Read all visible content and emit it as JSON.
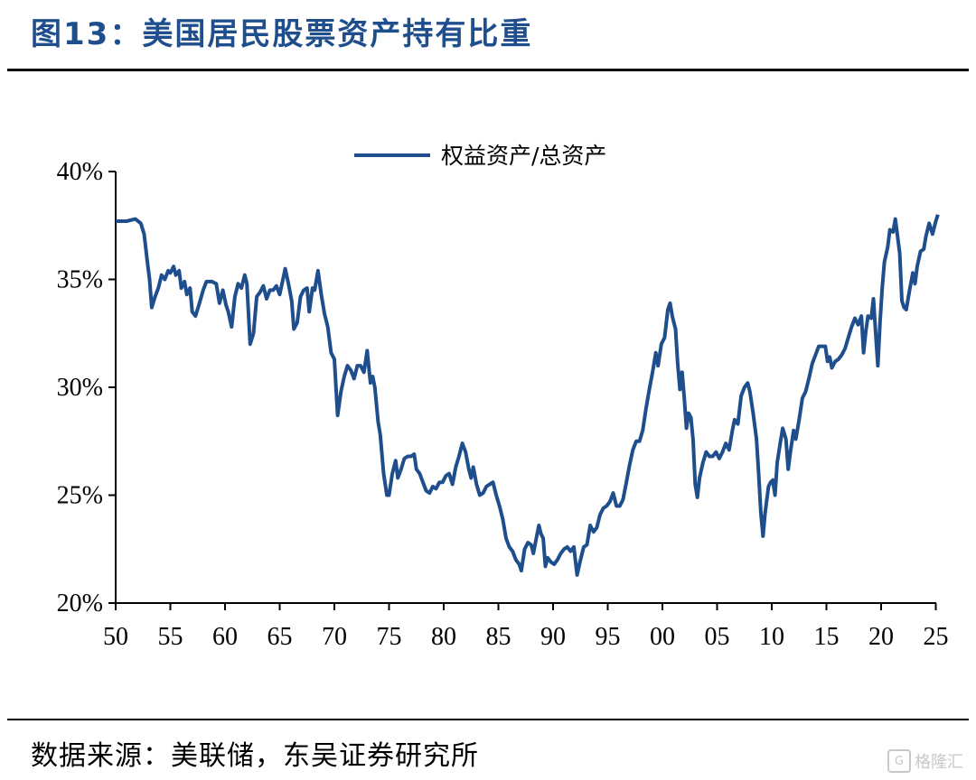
{
  "title": "图13：美国居民股票资产持有比重",
  "source": "数据来源：美联储，东吴证券研究所",
  "watermark": "格隆汇",
  "colors": {
    "title": "#1f4e8c",
    "line": "#1f4e8c",
    "axis": "#000000"
  },
  "chart_data": {
    "type": "line",
    "title": "",
    "xlabel": "",
    "ylabel": "",
    "x_ticks": [
      "50",
      "55",
      "60",
      "65",
      "70",
      "75",
      "80",
      "85",
      "90",
      "95",
      "00",
      "05",
      "10",
      "15",
      "20",
      "25"
    ],
    "y_ticks": [
      "20%",
      "25%",
      "30%",
      "35%",
      "40%"
    ],
    "ylim": [
      20,
      40
    ],
    "xlim": [
      1950,
      2025.3
    ],
    "grid": false,
    "legend": "top-center",
    "series": [
      {
        "name": "权益资产/总资产",
        "points": [
          [
            1950.0,
            37.7
          ],
          [
            1951.0,
            37.7
          ],
          [
            1951.8,
            37.8
          ],
          [
            1952.3,
            37.6
          ],
          [
            1952.6,
            37.1
          ],
          [
            1952.9,
            35.8
          ],
          [
            1953.1,
            35.0
          ],
          [
            1953.3,
            33.7
          ],
          [
            1953.6,
            34.2
          ],
          [
            1953.9,
            34.6
          ],
          [
            1954.2,
            35.2
          ],
          [
            1954.5,
            35.0
          ],
          [
            1954.8,
            35.4
          ],
          [
            1955.0,
            35.3
          ],
          [
            1955.3,
            35.6
          ],
          [
            1955.5,
            35.2
          ],
          [
            1955.8,
            35.4
          ],
          [
            1956.0,
            34.6
          ],
          [
            1956.3,
            34.9
          ],
          [
            1956.5,
            34.3
          ],
          [
            1956.8,
            34.6
          ],
          [
            1957.0,
            33.5
          ],
          [
            1957.3,
            33.3
          ],
          [
            1957.6,
            33.8
          ],
          [
            1958.0,
            34.5
          ],
          [
            1958.3,
            34.9
          ],
          [
            1958.8,
            34.9
          ],
          [
            1959.2,
            34.8
          ],
          [
            1959.5,
            33.9
          ],
          [
            1959.8,
            34.5
          ],
          [
            1960.1,
            33.8
          ],
          [
            1960.3,
            33.5
          ],
          [
            1960.6,
            32.8
          ],
          [
            1960.9,
            34.2
          ],
          [
            1961.2,
            34.8
          ],
          [
            1961.5,
            34.6
          ],
          [
            1961.8,
            35.2
          ],
          [
            1962.0,
            34.8
          ],
          [
            1962.3,
            32.0
          ],
          [
            1962.6,
            32.5
          ],
          [
            1962.9,
            34.2
          ],
          [
            1963.2,
            34.4
          ],
          [
            1963.5,
            34.7
          ],
          [
            1963.8,
            34.1
          ],
          [
            1964.1,
            34.5
          ],
          [
            1964.4,
            34.5
          ],
          [
            1964.7,
            34.7
          ],
          [
            1965.0,
            34.3
          ],
          [
            1965.3,
            35.0
          ],
          [
            1965.5,
            35.5
          ],
          [
            1965.8,
            34.8
          ],
          [
            1966.1,
            34.0
          ],
          [
            1966.3,
            32.7
          ],
          [
            1966.6,
            33.0
          ],
          [
            1966.9,
            34.2
          ],
          [
            1967.2,
            34.5
          ],
          [
            1967.5,
            34.6
          ],
          [
            1967.7,
            33.5
          ],
          [
            1968.0,
            34.6
          ],
          [
            1968.2,
            34.5
          ],
          [
            1968.5,
            35.4
          ],
          [
            1968.8,
            34.3
          ],
          [
            1969.1,
            33.4
          ],
          [
            1969.4,
            32.8
          ],
          [
            1969.7,
            31.6
          ],
          [
            1970.0,
            31.3
          ],
          [
            1970.3,
            28.7
          ],
          [
            1970.6,
            29.8
          ],
          [
            1970.9,
            30.5
          ],
          [
            1971.2,
            31.0
          ],
          [
            1971.5,
            30.8
          ],
          [
            1971.8,
            30.4
          ],
          [
            1972.1,
            31.0
          ],
          [
            1972.4,
            31.0
          ],
          [
            1972.7,
            30.7
          ],
          [
            1973.0,
            31.7
          ],
          [
            1973.3,
            30.2
          ],
          [
            1973.5,
            30.5
          ],
          [
            1973.7,
            30.0
          ],
          [
            1974.0,
            28.4
          ],
          [
            1974.2,
            27.8
          ],
          [
            1974.5,
            26.0
          ],
          [
            1974.8,
            25.0
          ],
          [
            1975.0,
            25.0
          ],
          [
            1975.3,
            26.0
          ],
          [
            1975.6,
            26.6
          ],
          [
            1975.8,
            25.8
          ],
          [
            1976.1,
            26.2
          ],
          [
            1976.4,
            26.7
          ],
          [
            1976.7,
            26.8
          ],
          [
            1977.0,
            26.8
          ],
          [
            1977.3,
            26.9
          ],
          [
            1977.5,
            26.2
          ],
          [
            1977.8,
            26.0
          ],
          [
            1978.1,
            25.6
          ],
          [
            1978.4,
            25.2
          ],
          [
            1978.7,
            25.1
          ],
          [
            1979.0,
            25.4
          ],
          [
            1979.3,
            25.3
          ],
          [
            1979.6,
            25.6
          ],
          [
            1979.9,
            25.6
          ],
          [
            1980.2,
            25.9
          ],
          [
            1980.5,
            26.0
          ],
          [
            1980.8,
            25.5
          ],
          [
            1981.1,
            26.3
          ],
          [
            1981.4,
            26.8
          ],
          [
            1981.7,
            27.4
          ],
          [
            1982.0,
            27.0
          ],
          [
            1982.3,
            26.2
          ],
          [
            1982.5,
            25.8
          ],
          [
            1982.7,
            26.3
          ],
          [
            1983.0,
            25.5
          ],
          [
            1983.3,
            25.0
          ],
          [
            1983.6,
            25.1
          ],
          [
            1983.9,
            25.4
          ],
          [
            1984.2,
            25.5
          ],
          [
            1984.5,
            25.6
          ],
          [
            1984.8,
            25.0
          ],
          [
            1985.1,
            24.5
          ],
          [
            1985.4,
            23.9
          ],
          [
            1985.7,
            23.0
          ],
          [
            1986.0,
            22.6
          ],
          [
            1986.3,
            22.4
          ],
          [
            1986.6,
            22.0
          ],
          [
            1986.9,
            21.8
          ],
          [
            1987.1,
            21.5
          ],
          [
            1987.4,
            22.5
          ],
          [
            1987.7,
            22.8
          ],
          [
            1988.0,
            22.7
          ],
          [
            1988.2,
            22.3
          ],
          [
            1988.5,
            23.1
          ],
          [
            1988.7,
            23.6
          ],
          [
            1988.9,
            23.2
          ],
          [
            1989.1,
            23.0
          ],
          [
            1989.3,
            21.7
          ],
          [
            1989.5,
            22.1
          ],
          [
            1989.8,
            21.9
          ],
          [
            1990.1,
            21.8
          ],
          [
            1990.4,
            22.0
          ],
          [
            1990.7,
            22.3
          ],
          [
            1991.0,
            22.5
          ],
          [
            1991.3,
            22.6
          ],
          [
            1991.6,
            22.4
          ],
          [
            1991.9,
            22.6
          ],
          [
            1992.2,
            21.3
          ],
          [
            1992.5,
            22.0
          ],
          [
            1992.8,
            22.6
          ],
          [
            1993.1,
            22.7
          ],
          [
            1993.4,
            23.6
          ],
          [
            1993.7,
            23.3
          ],
          [
            1994.0,
            23.5
          ],
          [
            1994.3,
            24.1
          ],
          [
            1994.6,
            24.4
          ],
          [
            1994.9,
            24.5
          ],
          [
            1995.2,
            24.7
          ],
          [
            1995.5,
            25.1
          ],
          [
            1995.8,
            24.5
          ],
          [
            1996.1,
            24.5
          ],
          [
            1996.4,
            24.8
          ],
          [
            1996.7,
            25.6
          ],
          [
            1997.0,
            26.4
          ],
          [
            1997.3,
            27.1
          ],
          [
            1997.6,
            27.5
          ],
          [
            1997.9,
            27.5
          ],
          [
            1998.2,
            28.0
          ],
          [
            1998.5,
            29.0
          ],
          [
            1998.8,
            29.9
          ],
          [
            1999.1,
            30.7
          ],
          [
            1999.4,
            31.6
          ],
          [
            1999.6,
            31.0
          ],
          [
            1999.9,
            32.0
          ],
          [
            2000.2,
            32.3
          ],
          [
            2000.5,
            33.6
          ],
          [
            2000.7,
            33.9
          ],
          [
            2000.9,
            33.3
          ],
          [
            2001.2,
            32.7
          ],
          [
            2001.4,
            31.1
          ],
          [
            2001.6,
            29.9
          ],
          [
            2001.8,
            30.7
          ],
          [
            2002.0,
            29.5
          ],
          [
            2002.2,
            28.1
          ],
          [
            2002.4,
            28.8
          ],
          [
            2002.6,
            28.6
          ],
          [
            2002.8,
            27.6
          ],
          [
            2003.0,
            25.5
          ],
          [
            2003.2,
            24.9
          ],
          [
            2003.4,
            25.8
          ],
          [
            2003.7,
            26.5
          ],
          [
            2004.0,
            27.0
          ],
          [
            2004.3,
            26.8
          ],
          [
            2004.6,
            26.8
          ],
          [
            2004.9,
            27.0
          ],
          [
            2005.2,
            26.7
          ],
          [
            2005.5,
            27.0
          ],
          [
            2005.8,
            27.4
          ],
          [
            2006.1,
            27.1
          ],
          [
            2006.4,
            28.0
          ],
          [
            2006.6,
            28.5
          ],
          [
            2006.9,
            28.3
          ],
          [
            2007.2,
            29.6
          ],
          [
            2007.5,
            30.0
          ],
          [
            2007.8,
            30.2
          ],
          [
            2008.0,
            29.8
          ],
          [
            2008.3,
            28.8
          ],
          [
            2008.6,
            27.6
          ],
          [
            2008.8,
            26.0
          ],
          [
            2009.0,
            24.2
          ],
          [
            2009.2,
            23.1
          ],
          [
            2009.4,
            24.2
          ],
          [
            2009.7,
            25.4
          ],
          [
            2009.9,
            25.6
          ],
          [
            2010.1,
            25.7
          ],
          [
            2010.3,
            25.0
          ],
          [
            2010.5,
            26.5
          ],
          [
            2010.8,
            27.5
          ],
          [
            2011.0,
            28.1
          ],
          [
            2011.3,
            27.6
          ],
          [
            2011.5,
            26.2
          ],
          [
            2011.7,
            27.0
          ],
          [
            2012.0,
            28.0
          ],
          [
            2012.2,
            27.6
          ],
          [
            2012.5,
            28.5
          ],
          [
            2012.8,
            29.5
          ],
          [
            2013.1,
            29.8
          ],
          [
            2013.4,
            30.4
          ],
          [
            2013.7,
            31.1
          ],
          [
            2014.0,
            31.5
          ],
          [
            2014.3,
            31.9
          ],
          [
            2014.6,
            31.9
          ],
          [
            2014.9,
            31.9
          ],
          [
            2015.1,
            31.2
          ],
          [
            2015.3,
            31.4
          ],
          [
            2015.5,
            30.9
          ],
          [
            2015.8,
            31.2
          ],
          [
            2016.1,
            31.3
          ],
          [
            2016.4,
            31.5
          ],
          [
            2016.7,
            31.8
          ],
          [
            2017.0,
            32.3
          ],
          [
            2017.3,
            32.8
          ],
          [
            2017.6,
            33.2
          ],
          [
            2017.9,
            32.9
          ],
          [
            2018.2,
            33.3
          ],
          [
            2018.4,
            31.6
          ],
          [
            2018.6,
            32.6
          ],
          [
            2018.8,
            33.3
          ],
          [
            2019.1,
            33.2
          ],
          [
            2019.3,
            34.1
          ],
          [
            2019.5,
            32.5
          ],
          [
            2019.7,
            31.0
          ],
          [
            2019.9,
            33.0
          ],
          [
            2020.1,
            34.6
          ],
          [
            2020.3,
            35.8
          ],
          [
            2020.6,
            36.5
          ],
          [
            2020.8,
            37.3
          ],
          [
            2021.1,
            37.2
          ],
          [
            2021.3,
            37.8
          ],
          [
            2021.5,
            37.0
          ],
          [
            2021.7,
            36.2
          ],
          [
            2021.9,
            34.0
          ],
          [
            2022.1,
            33.7
          ],
          [
            2022.3,
            33.6
          ],
          [
            2022.6,
            34.5
          ],
          [
            2022.9,
            35.3
          ],
          [
            2023.1,
            34.8
          ],
          [
            2023.3,
            35.6
          ],
          [
            2023.6,
            36.3
          ],
          [
            2023.9,
            36.4
          ],
          [
            2024.1,
            37.0
          ],
          [
            2024.4,
            37.6
          ],
          [
            2024.7,
            37.1
          ],
          [
            2025.0,
            37.7
          ],
          [
            2025.2,
            38.0
          ]
        ]
      }
    ]
  }
}
